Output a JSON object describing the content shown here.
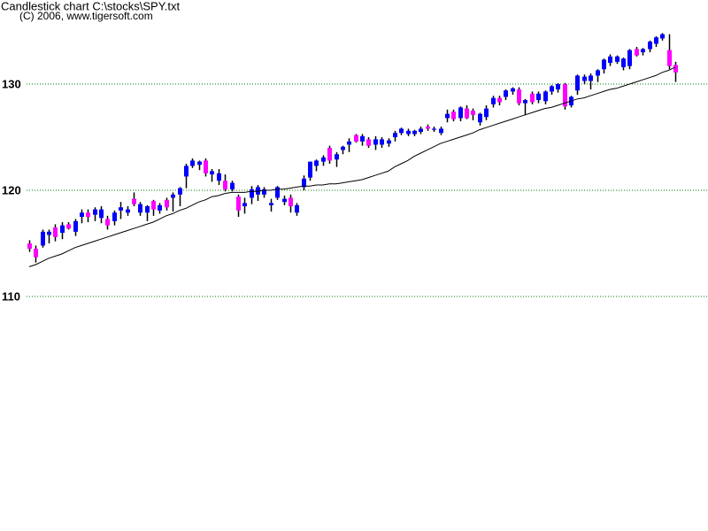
{
  "chart_data": {
    "type": "candlestick",
    "title": "Candlestick chart C:\\stocks\\SPY.txt",
    "subtitle": "(C) 2006, www.tigersoft.com",
    "ylim": [
      87.92,
      137.92
    ],
    "yticks": [
      110,
      120,
      130
    ],
    "grid": true,
    "grid_color": "#008000",
    "up_color": "#0000ff",
    "down_color": "#ff00ff",
    "wick_color": "#000000",
    "open": [
      115.0,
      114.5,
      114.8,
      115.8,
      116.5,
      116.0,
      116.8,
      116.1,
      117.5,
      117.9,
      117.7,
      117.4,
      117.3,
      117.1,
      118.1,
      117.9,
      119.2,
      117.9,
      117.9,
      119.0,
      118.1,
      119.1,
      119.3,
      119.6,
      121.3,
      122.3,
      122.4,
      122.8,
      121.5,
      120.9,
      120.9,
      120.1,
      119.4,
      118.5,
      119.3,
      119.6,
      119.6,
      118.6,
      119.3,
      118.9,
      119.3,
      117.9,
      120.3,
      121.2,
      122.3,
      122.7,
      124.0,
      122.9,
      123.8,
      124.3,
      125.2,
      124.6,
      124.8,
      124.3,
      124.3,
      124.4,
      125.0,
      125.4,
      125.3,
      125.3,
      125.5,
      126.0,
      125.7,
      125.4,
      126.8,
      127.4,
      126.8,
      127.7,
      127.5,
      126.4,
      126.9,
      128.1,
      128.7,
      128.8,
      129.3,
      129.5,
      128.2,
      129.1,
      128.5,
      128.4,
      129.3,
      129.5,
      130.0,
      128.0,
      129.4,
      130.3,
      130.3,
      130.8,
      131.4,
      132.0,
      132.1,
      131.6,
      131.7,
      133.3,
      133.0,
      133.3,
      133.8,
      134.3,
      133.2,
      131.8
    ],
    "high": [
      115.3,
      114.8,
      116.3,
      116.3,
      116.8,
      117.0,
      117.0,
      117.3,
      118.2,
      118.2,
      118.4,
      118.5,
      117.6,
      118.1,
      118.9,
      118.5,
      119.8,
      118.9,
      118.6,
      119.1,
      118.8,
      119.3,
      119.8,
      120.3,
      122.5,
      123.0,
      122.8,
      123.0,
      122.0,
      122.0,
      121.5,
      120.9,
      119.6,
      119.3,
      120.4,
      120.5,
      120.3,
      119.2,
      120.4,
      119.5,
      119.6,
      118.8,
      121.4,
      122.7,
      122.9,
      123.3,
      124.2,
      123.6,
      124.2,
      124.9,
      125.3,
      125.3,
      125.0,
      125.1,
      125.0,
      124.9,
      125.6,
      125.9,
      125.8,
      125.7,
      126.0,
      126.2,
      126.0,
      126.0,
      127.6,
      127.6,
      127.9,
      128.0,
      127.7,
      127.3,
      128.0,
      128.9,
      128.9,
      129.5,
      129.7,
      129.7,
      128.6,
      129.3,
      129.3,
      129.4,
      129.9,
      130.1,
      130.1,
      128.9,
      130.9,
      130.9,
      131.0,
      131.4,
      132.4,
      132.8,
      132.7,
      132.5,
      133.3,
      133.5,
      133.4,
      134.1,
      134.5,
      134.8,
      134.7,
      132.1
    ],
    "low": [
      114.2,
      113.2,
      114.6,
      115.0,
      115.2,
      115.4,
      116.3,
      115.7,
      116.9,
      117.0,
      117.1,
      116.9,
      116.3,
      116.7,
      117.3,
      117.6,
      118.5,
      117.6,
      117.1,
      117.6,
      117.8,
      118.1,
      118.0,
      118.5,
      120.2,
      122.1,
      121.9,
      121.3,
      120.8,
      120.5,
      119.9,
      119.9,
      117.5,
      117.8,
      118.7,
      119.0,
      119.3,
      118.0,
      119.1,
      118.6,
      117.9,
      117.6,
      120.0,
      120.9,
      121.8,
      122.3,
      122.5,
      122.2,
      123.4,
      123.6,
      124.5,
      124.2,
      124.0,
      123.8,
      124.0,
      124.1,
      124.6,
      125.2,
      125.1,
      125.1,
      125.3,
      125.6,
      125.5,
      125.2,
      126.4,
      126.5,
      126.5,
      126.7,
      126.6,
      126.1,
      126.6,
      127.8,
      128.0,
      128.5,
      129.0,
      128.0,
      127.1,
      128.1,
      128.2,
      128.1,
      129.0,
      129.2,
      127.6,
      127.8,
      129.0,
      130.0,
      129.5,
      130.2,
      131.0,
      131.7,
      131.9,
      131.3,
      131.4,
      132.6,
      132.7,
      133.0,
      133.5,
      134.1,
      131.4,
      130.2
    ],
    "close": [
      114.5,
      113.7,
      116.1,
      116.1,
      115.6,
      116.7,
      116.4,
      117.1,
      117.9,
      117.5,
      118.2,
      118.2,
      116.7,
      117.9,
      118.4,
      118.2,
      118.7,
      118.7,
      118.5,
      118.2,
      118.6,
      118.4,
      119.6,
      120.2,
      122.3,
      122.8,
      122.7,
      121.6,
      121.8,
      121.6,
      120.1,
      120.7,
      118.1,
      118.8,
      120.1,
      120.3,
      120.1,
      118.8,
      120.3,
      119.2,
      118.5,
      118.6,
      121.1,
      122.7,
      122.8,
      123.1,
      122.8,
      123.4,
      124.1,
      124.6,
      124.6,
      125.1,
      124.2,
      124.8,
      124.8,
      124.7,
      125.4,
      125.8,
      125.6,
      125.6,
      125.8,
      125.8,
      125.8,
      125.8,
      127.2,
      126.7,
      127.8,
      126.8,
      127.1,
      127.2,
      127.7,
      128.7,
      128.3,
      129.4,
      129.6,
      128.2,
      128.5,
      128.3,
      129.1,
      129.3,
      129.8,
      130.0,
      127.9,
      128.8,
      130.8,
      130.7,
      130.8,
      131.3,
      132.3,
      132.6,
      132.6,
      132.4,
      133.2,
      132.7,
      133.3,
      134.0,
      134.4,
      134.7,
      131.7,
      131.1
    ],
    "moving_average": {
      "color": "#000000",
      "values": [
        112.8,
        113.0,
        113.3,
        113.6,
        113.8,
        114.0,
        114.3,
        114.6,
        114.8,
        115.0,
        115.2,
        115.4,
        115.6,
        115.8,
        116.0,
        116.2,
        116.4,
        116.6,
        116.8,
        117.0,
        117.3,
        117.6,
        117.8,
        118.1,
        118.3,
        118.6,
        118.9,
        119.1,
        119.4,
        119.5,
        119.7,
        119.8,
        119.8,
        119.8,
        119.9,
        119.9,
        120.0,
        120.0,
        120.1,
        120.1,
        120.2,
        120.3,
        120.4,
        120.4,
        120.5,
        120.5,
        120.6,
        120.6,
        120.7,
        120.8,
        120.9,
        121.0,
        121.2,
        121.4,
        121.6,
        121.8,
        122.2,
        122.5,
        122.8,
        123.2,
        123.5,
        123.8,
        124.1,
        124.4,
        124.6,
        124.8,
        125.0,
        125.2,
        125.4,
        125.7,
        125.9,
        126.1,
        126.3,
        126.5,
        126.7,
        126.9,
        127.1,
        127.3,
        127.5,
        127.7,
        127.8,
        128.0,
        128.2,
        128.4,
        128.6,
        128.7,
        128.9,
        129.1,
        129.3,
        129.5,
        129.6,
        129.8,
        130.0,
        130.2,
        130.4,
        130.6,
        130.8,
        131.1,
        131.3,
        131.6
      ]
    }
  }
}
